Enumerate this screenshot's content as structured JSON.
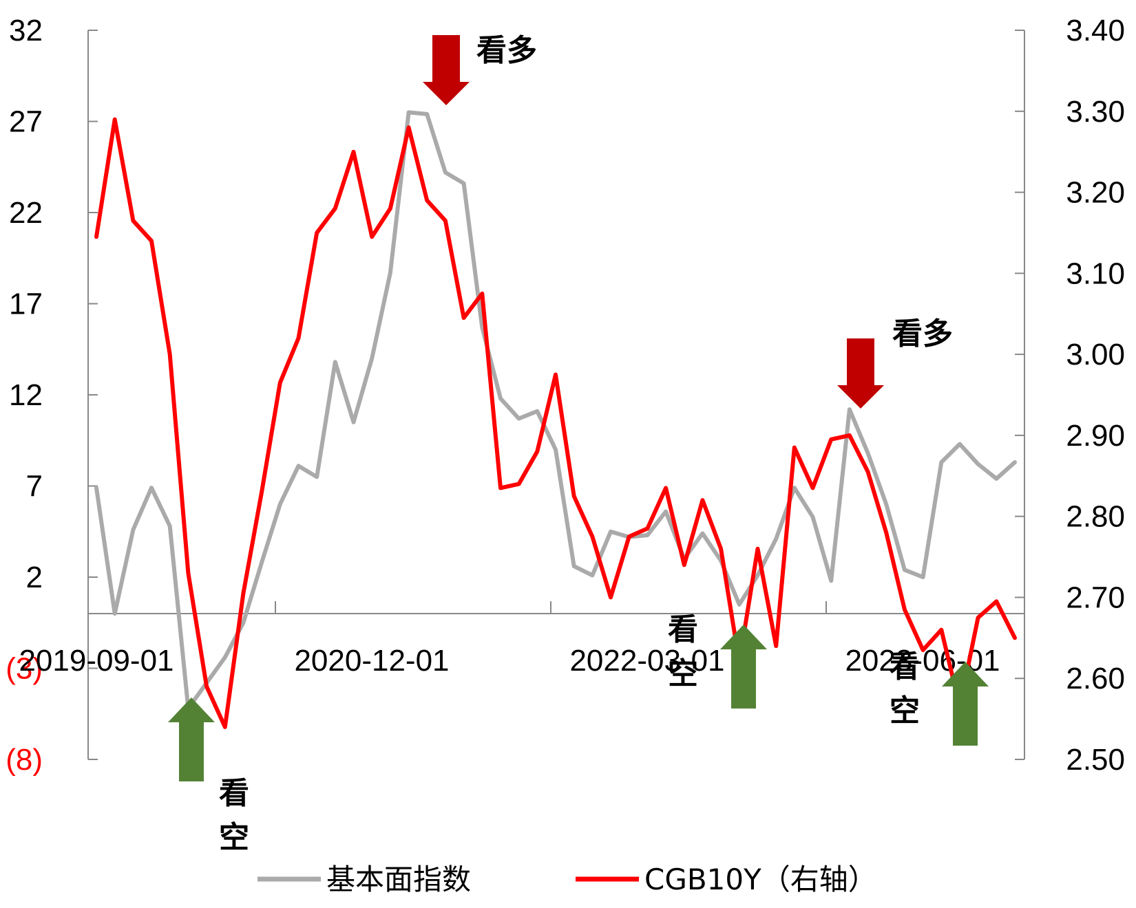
{
  "chart_data": {
    "type": "line",
    "title": "",
    "xlabel": "",
    "ylabel": "",
    "colors": {
      "fundamental": "#aaaaaa",
      "cgb10y": "#ff0000",
      "bull_arrow": "#c00000",
      "bear_arrow": "#548235",
      "axis": "#888888",
      "negative_tick": "#ff0000"
    },
    "x_tick_labels": [
      "2019-09-01",
      "2020-12-01",
      "2022-03-01",
      "2023-06-01"
    ],
    "left_axis": {
      "ylim": [
        -8,
        32
      ],
      "ticks": [
        "32",
        "27",
        "22",
        "17",
        "12",
        "7",
        "2",
        "(3)",
        "(8)"
      ],
      "tick_values": [
        32,
        27,
        22,
        17,
        12,
        7,
        2,
        -3,
        -8
      ]
    },
    "right_axis": {
      "ylim": [
        2.5,
        3.4
      ],
      "ticks": [
        "3.40",
        "3.30",
        "3.20",
        "3.10",
        "3.00",
        "2.90",
        "2.80",
        "2.70",
        "2.60",
        "2.50"
      ],
      "tick_values": [
        3.4,
        3.3,
        3.2,
        3.1,
        3.0,
        2.9,
        2.8,
        2.7,
        2.6,
        2.5
      ]
    },
    "series": [
      {
        "name": "基本面指数",
        "axis": "left",
        "values": [
          6.9,
          0.0,
          4.6,
          6.9,
          4.8,
          -5.2,
          -3.8,
          -2.4,
          -0.5,
          2.8,
          6.0,
          8.1,
          7.5,
          13.8,
          10.5,
          14.0,
          18.7,
          27.5,
          27.4,
          24.2,
          23.6,
          15.7,
          11.8,
          10.7,
          11.1,
          9.0,
          2.6,
          2.1,
          4.5,
          4.2,
          4.3,
          5.6,
          3.0,
          4.4,
          2.9,
          0.5,
          2.1,
          4.1,
          6.9,
          5.3,
          1.8,
          11.2,
          8.8,
          6.0,
          2.4,
          2.0,
          8.3,
          9.3,
          8.2,
          7.4,
          8.3
        ]
      },
      {
        "name": "CGB10Y（右轴）",
        "axis": "right",
        "values": [
          3.145,
          3.29,
          3.165,
          3.14,
          3.0,
          2.73,
          2.59,
          2.54,
          2.705,
          2.83,
          2.965,
          3.02,
          3.15,
          3.18,
          3.25,
          3.145,
          3.18,
          3.28,
          3.19,
          3.165,
          3.045,
          3.075,
          2.835,
          2.84,
          2.88,
          2.975,
          2.825,
          2.775,
          2.7,
          2.775,
          2.785,
          2.835,
          2.74,
          2.82,
          2.76,
          2.62,
          2.76,
          2.64,
          2.885,
          2.835,
          2.895,
          2.9,
          2.855,
          2.78,
          2.685,
          2.635,
          2.66,
          2.565,
          2.675,
          2.695,
          2.65
        ]
      }
    ],
    "annotations": [
      {
        "text": "看多",
        "kind": "bullish",
        "series_index": 18
      },
      {
        "text": "看多",
        "kind": "bullish",
        "series_index": 41
      },
      {
        "text": "看空",
        "kind": "bearish",
        "series_index": 5
      },
      {
        "text": "看空",
        "kind": "bearish",
        "series_index": 35
      },
      {
        "text": "看空",
        "kind": "bearish",
        "series_index": 47
      }
    ],
    "legend": {
      "placement": "bottom"
    },
    "grid": false
  }
}
